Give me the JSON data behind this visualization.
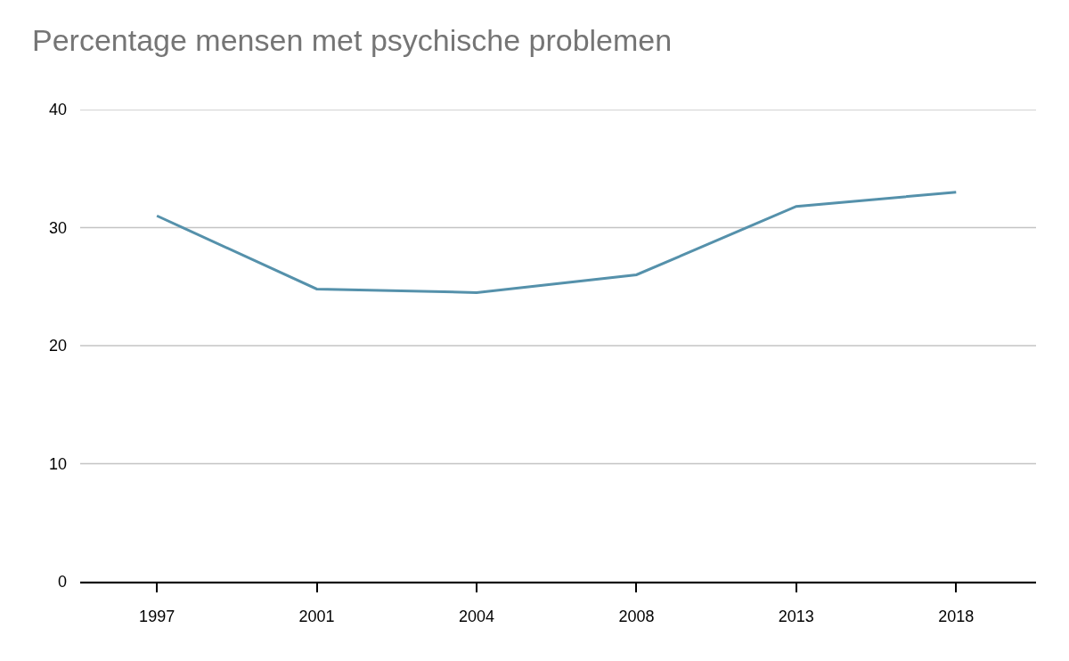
{
  "chart_data": {
    "type": "line",
    "title": "Percentage mensen met psychische problemen",
    "categories": [
      "1997",
      "2001",
      "2004",
      "2008",
      "2013",
      "2018"
    ],
    "series": [
      {
        "color": "#5591ab",
        "values": [
          31.0,
          24.8,
          24.5,
          26.0,
          31.8,
          33.0
        ]
      }
    ],
    "ylim": [
      0,
      40
    ],
    "yticks": [
      0,
      10,
      20,
      30,
      40
    ],
    "grid": "y",
    "marker": "none",
    "line_style": "solid"
  }
}
